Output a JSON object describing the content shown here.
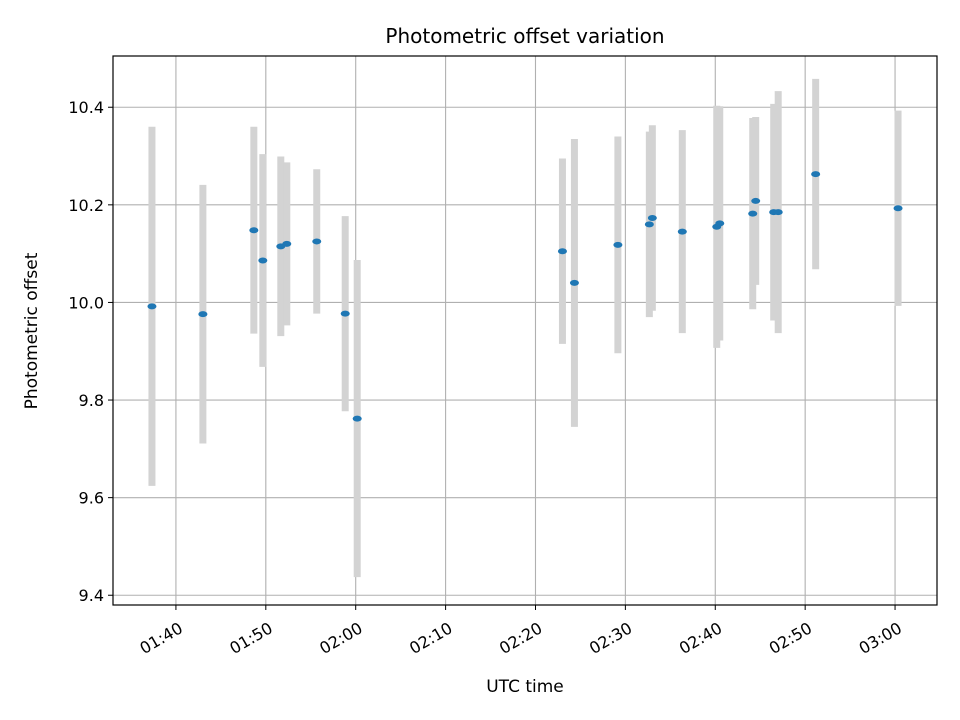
{
  "chart_data": {
    "type": "scatter",
    "title": "Photometric offset variation",
    "xlabel": "UTC time",
    "ylabel": "Photometric offset",
    "x_ticks": [
      "01:40",
      "01:50",
      "02:00",
      "02:10",
      "02:20",
      "02:30",
      "02:40",
      "02:50",
      "03:00"
    ],
    "y_ticks": [
      "9.4",
      "9.6",
      "9.8",
      "10.0",
      "10.2",
      "10.4"
    ],
    "xlim": [
      "01:33:00",
      "03:04:40"
    ],
    "ylim": [
      9.38,
      10.505
    ],
    "grid": true,
    "errorbar_color": "#d3d3d3",
    "marker_color": "#1f77b4",
    "points": [
      {
        "x": "01:37:20",
        "y": 9.992,
        "err": 0.368
      },
      {
        "x": "01:43:00",
        "y": 9.976,
        "err": 0.265
      },
      {
        "x": "01:48:40",
        "y": 10.148,
        "err": 0.212
      },
      {
        "x": "01:49:40",
        "y": 10.086,
        "err": 0.218
      },
      {
        "x": "01:51:40",
        "y": 10.115,
        "err": 0.184
      },
      {
        "x": "01:52:20",
        "y": 10.12,
        "err": 0.167
      },
      {
        "x": "01:55:40",
        "y": 10.125,
        "err": 0.148
      },
      {
        "x": "01:58:50",
        "y": 9.977,
        "err": 0.2
      },
      {
        "x": "02:00:10",
        "y": 9.762,
        "err": 0.325
      },
      {
        "x": "02:23:00",
        "y": 10.105,
        "err": 0.19
      },
      {
        "x": "02:24:20",
        "y": 10.04,
        "err": 0.295
      },
      {
        "x": "02:29:10",
        "y": 10.118,
        "err": 0.222
      },
      {
        "x": "02:32:40",
        "y": 10.16,
        "err": 0.19
      },
      {
        "x": "02:33:00",
        "y": 10.173,
        "err": 0.19
      },
      {
        "x": "02:36:20",
        "y": 10.145,
        "err": 0.208
      },
      {
        "x": "02:40:10",
        "y": 10.155,
        "err": 0.248
      },
      {
        "x": "02:40:30",
        "y": 10.162,
        "err": 0.24
      },
      {
        "x": "02:44:10",
        "y": 10.182,
        "err": 0.196
      },
      {
        "x": "02:44:30",
        "y": 10.208,
        "err": 0.172
      },
      {
        "x": "02:46:30",
        "y": 10.185,
        "err": 0.222
      },
      {
        "x": "02:47:00",
        "y": 10.185,
        "err": 0.248
      },
      {
        "x": "02:51:10",
        "y": 10.263,
        "err": 0.195
      },
      {
        "x": "03:00:20",
        "y": 10.193,
        "err": 0.2
      }
    ]
  }
}
